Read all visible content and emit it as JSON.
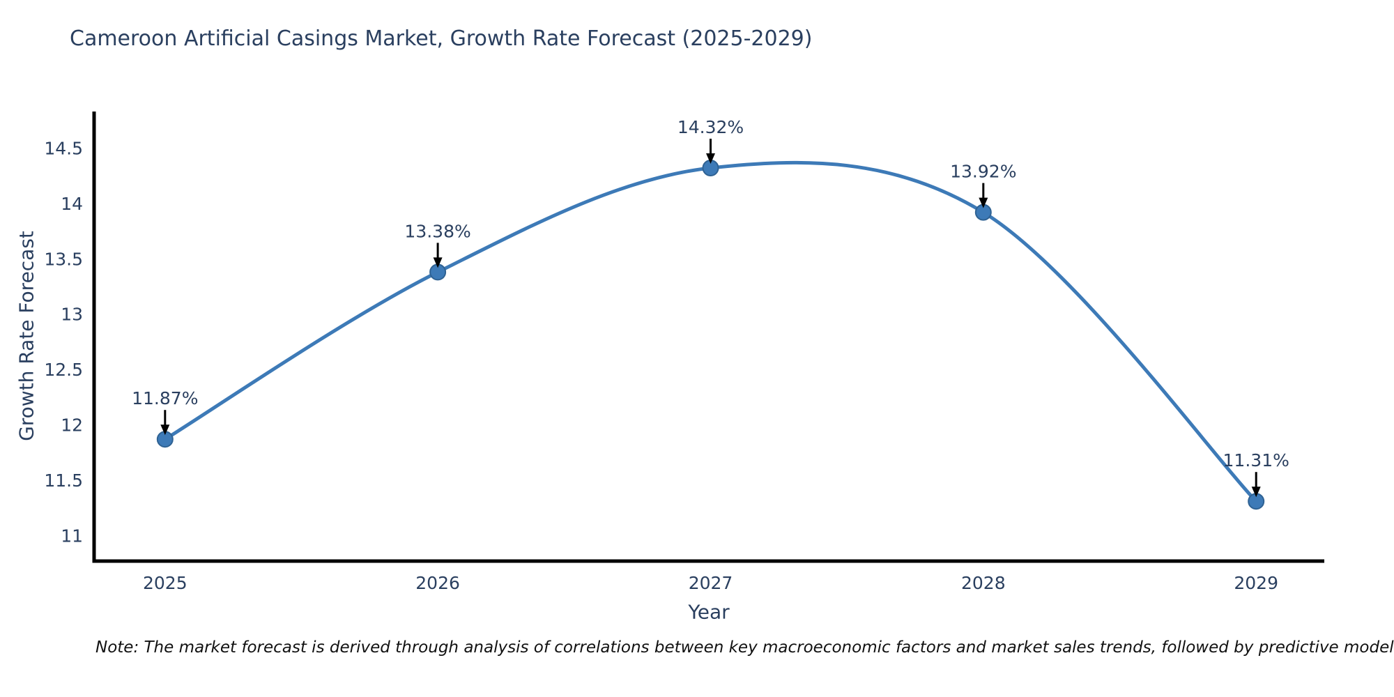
{
  "note": {
    "text": "Note: The market forecast is derived through analysis of correlations between key macroeconomic factors and market sales trends, followed by predictive modeling to project future sal"
  },
  "chart_data": {
    "type": "line",
    "title": "Cameroon Artificial Casings Market, Growth Rate Forecast (2025-2029)",
    "xlabel": "Year",
    "ylabel": "Growth Rate Forecast",
    "x": [
      2025,
      2026,
      2027,
      2028,
      2029
    ],
    "y": [
      11.87,
      13.38,
      14.32,
      13.92,
      11.31
    ],
    "point_labels": [
      "11.87%",
      "13.38%",
      "14.32%",
      "13.92%",
      "11.31%"
    ],
    "x_ticks": [
      2025,
      2026,
      2027,
      2028,
      2029
    ],
    "y_ticks": [
      11,
      11.5,
      12,
      12.5,
      13,
      13.5,
      14,
      14.5
    ],
    "x_range": [
      2024.74,
      2029.25
    ],
    "y_range": [
      10.77,
      14.83
    ],
    "line_shape": "spline",
    "grid": false,
    "legend": false,
    "colors": {
      "line": "#3d7ab7",
      "marker_fill": "#3d7ab7",
      "marker_edge": "#2f6293",
      "axis": "#000000",
      "text": "#2a3f5f",
      "annotation_arrow": "#000000",
      "background": "#ffffff"
    }
  }
}
